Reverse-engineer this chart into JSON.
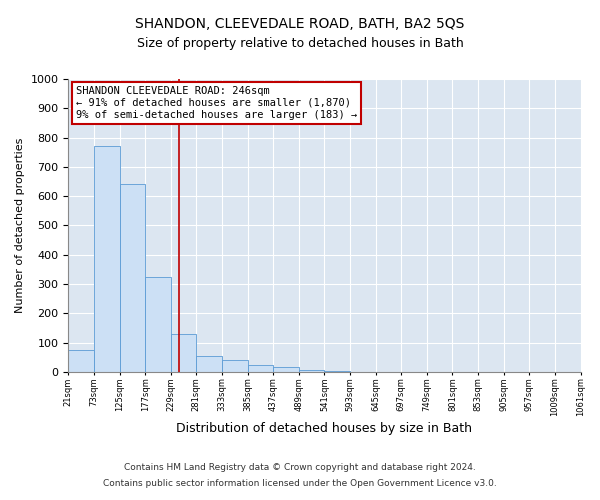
{
  "title1": "SHANDON, CLEEVEDALE ROAD, BATH, BA2 5QS",
  "title2": "Size of property relative to detached houses in Bath",
  "xlabel": "Distribution of detached houses by size in Bath",
  "ylabel": "Number of detached properties",
  "bar_edges": [
    21,
    73,
    125,
    177,
    229,
    281,
    333,
    385,
    437,
    489,
    541,
    593,
    645,
    697,
    749,
    801,
    853,
    905,
    957,
    1009,
    1061
  ],
  "bar_heights": [
    75,
    770,
    640,
    325,
    130,
    55,
    40,
    25,
    15,
    8,
    3,
    0,
    0,
    0,
    0,
    0,
    0,
    0,
    0,
    0
  ],
  "bar_color": "#cce0f5",
  "bar_edge_color": "#5b9bd5",
  "bg_color": "#dce6f1",
  "grid_color": "#ffffff",
  "vline_x": 246,
  "vline_color": "#c00000",
  "annotation_text": "SHANDON CLEEVEDALE ROAD: 246sqm\n← 91% of detached houses are smaller (1,870)\n9% of semi-detached houses are larger (183) →",
  "annotation_box_color": "#ffffff",
  "annotation_box_edge_color": "#c00000",
  "footnote1": "Contains HM Land Registry data © Crown copyright and database right 2024.",
  "footnote2": "Contains public sector information licensed under the Open Government Licence v3.0.",
  "ylim": [
    0,
    1000
  ],
  "yticks": [
    0,
    100,
    200,
    300,
    400,
    500,
    600,
    700,
    800,
    900,
    1000
  ],
  "tick_labels": [
    "21sqm",
    "73sqm",
    "125sqm",
    "177sqm",
    "229sqm",
    "281sqm",
    "333sqm",
    "385sqm",
    "437sqm",
    "489sqm",
    "541sqm",
    "593sqm",
    "645sqm",
    "697sqm",
    "749sqm",
    "801sqm",
    "853sqm",
    "905sqm",
    "957sqm",
    "1009sqm",
    "1061sqm"
  ]
}
